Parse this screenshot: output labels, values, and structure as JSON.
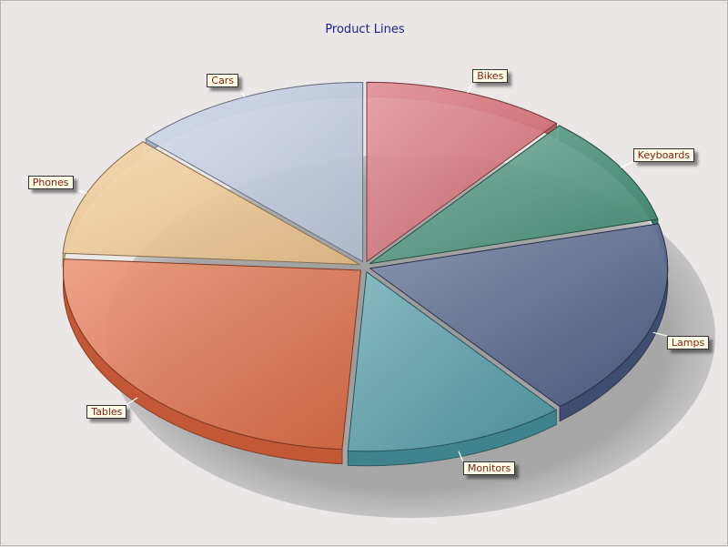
{
  "chart_data": {
    "type": "pie",
    "title": "Product Lines",
    "categories": [
      "Bikes",
      "Keyboards",
      "Lamps",
      "Monitors",
      "Tables",
      "Phones",
      "Cars"
    ],
    "values": [
      11,
      10,
      18,
      12,
      25,
      11,
      13
    ],
    "colors": [
      "#d86a72",
      "#3f8f77",
      "#4a5a85",
      "#4a9aa8",
      "#e4683e",
      "#f6c98d",
      "#c3cde6"
    ],
    "legend": "none",
    "grid": false,
    "style": "3d-exploded"
  }
}
